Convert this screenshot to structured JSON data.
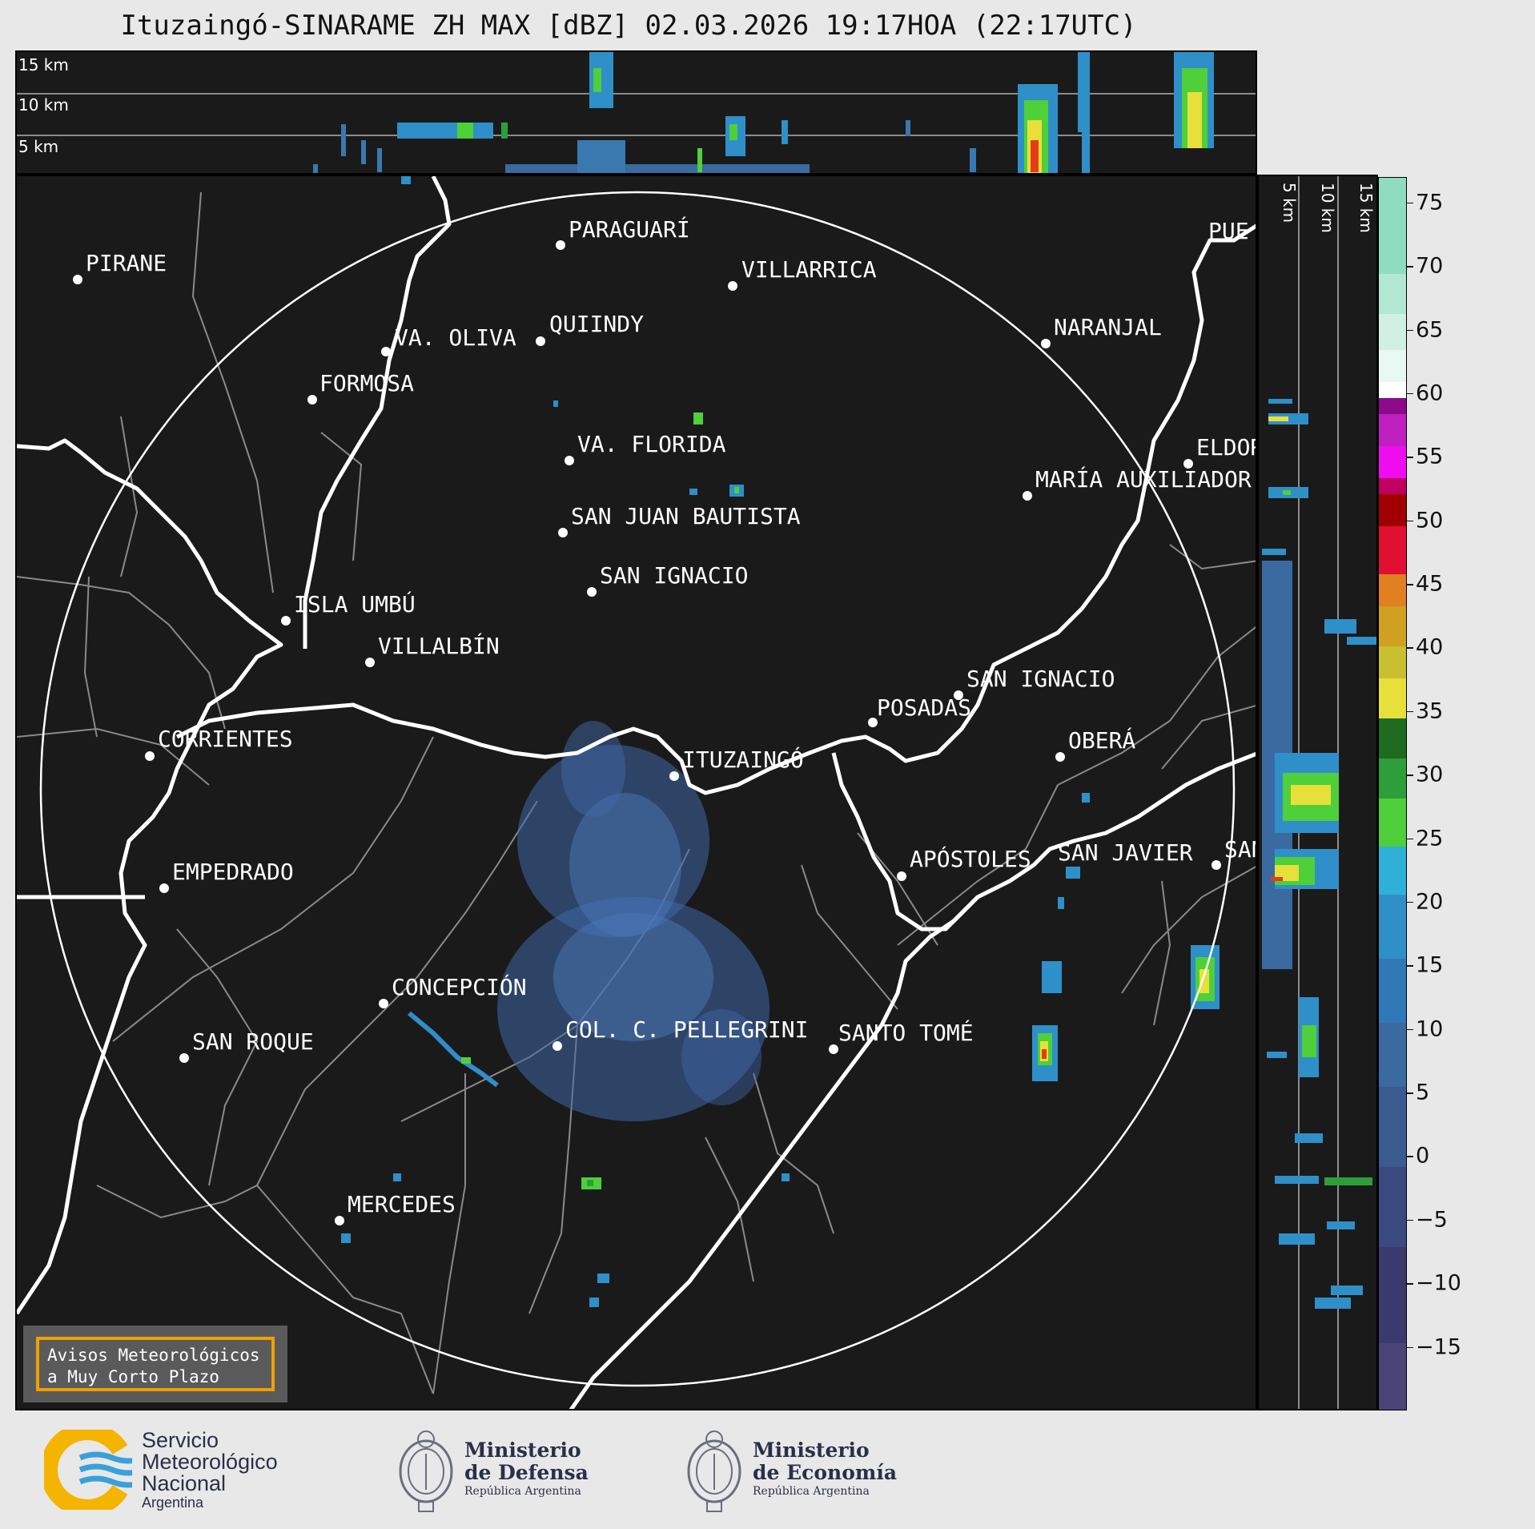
{
  "title": "Ituzaingó-SINARAME ZH MAX [dBZ] 02.03.2026 19:17HOA (22:17UTC)",
  "top_panel": {
    "alt_labels": [
      "15 km",
      "10 km",
      "5 km"
    ]
  },
  "side_panel": {
    "alt_labels": [
      "5 km",
      "10 km",
      "15 km"
    ]
  },
  "colorbar": {
    "unit": "dBZ",
    "ticks": [
      "75",
      "70",
      "65",
      "60",
      "55",
      "50",
      "45",
      "40",
      "35",
      "30",
      "25",
      "20",
      "15",
      "10",
      "5",
      "0",
      "−5",
      "−10",
      "−15"
    ],
    "tick_values": [
      75,
      70,
      65,
      60,
      55,
      50,
      45,
      40,
      35,
      30,
      25,
      20,
      15,
      10,
      5,
      0,
      -5,
      -10,
      -15
    ],
    "range": [
      -20,
      77
    ]
  },
  "cities": [
    {
      "name": "PIRANE"
    },
    {
      "name": "PARAGUARÍ"
    },
    {
      "name": "VILLARRICA"
    },
    {
      "name": "QUIINDY"
    },
    {
      "name": "VA. OLIVA"
    },
    {
      "name": "FORMOSA"
    },
    {
      "name": "NARANJAL"
    },
    {
      "name": "PUE"
    },
    {
      "name": "VA. FLORIDA"
    },
    {
      "name": "ELDOR"
    },
    {
      "name": "MARÍA AUXILIADOR"
    },
    {
      "name": "SAN JUAN BAUTISTA"
    },
    {
      "name": "SAN IGNACIO"
    },
    {
      "name": "ISLA UMBÚ"
    },
    {
      "name": "VILLALBÍN"
    },
    {
      "name": "SAN IGNACIO"
    },
    {
      "name": "POSADAS"
    },
    {
      "name": "CORRIENTES"
    },
    {
      "name": "ITUZAINGÓ"
    },
    {
      "name": "OBERÁ"
    },
    {
      "name": "EMPEDRADO"
    },
    {
      "name": "APÓSTOLES"
    },
    {
      "name": "SAN JAVIER"
    },
    {
      "name": "SAN"
    },
    {
      "name": "CONCEPCIÓN"
    },
    {
      "name": "COL. C. PELLEGRINI"
    },
    {
      "name": "SANTO TOMÉ"
    },
    {
      "name": "SAN ROQUE"
    },
    {
      "name": "MERCEDES"
    }
  ],
  "warning": {
    "line1": "Avisos Meteorológicos",
    "line2": "a Muy Corto Plazo"
  },
  "logos": {
    "smn": {
      "line1": "Servicio",
      "line2": "Meteorológico",
      "line3": "Nacional",
      "line4": "Argentina"
    },
    "defensa": {
      "line1": "Ministerio",
      "line2": "de Defensa",
      "line3": "República Argentina"
    },
    "economia": {
      "line1": "Ministerio",
      "line2": "de Economía",
      "line3": "República Argentina"
    }
  },
  "colors": {
    "background": "#1a1a1a",
    "border_rivers": "#ffffff",
    "admin_lines": "#8a8a8a",
    "accent_warning": "#f0a000",
    "smn_blue": "#3aa0d8",
    "smn_yellow": "#f5b400"
  }
}
